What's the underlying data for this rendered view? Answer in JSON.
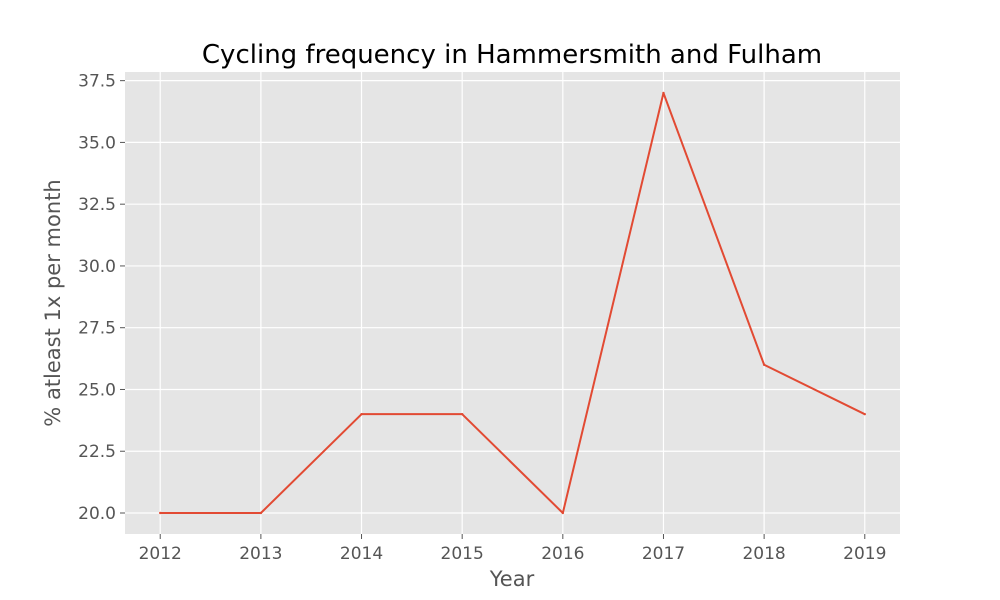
{
  "chart_data": {
    "type": "line",
    "title": "Cycling frequency in Hammersmith and Fulham",
    "xlabel": "Year",
    "ylabel": "% atleast 1x per month",
    "x": [
      2012,
      2013,
      2014,
      2015,
      2016,
      2017,
      2018,
      2019
    ],
    "series": [
      {
        "values": [
          20,
          20,
          24,
          24,
          20,
          37,
          26,
          24
        ],
        "color": "#e24a33"
      }
    ],
    "xticks": [
      "2012",
      "2013",
      "2014",
      "2015",
      "2016",
      "2017",
      "2018",
      "2019"
    ],
    "yticks": [
      "20.0",
      "22.5",
      "25.0",
      "27.5",
      "30.0",
      "32.5",
      "35.0",
      "37.5"
    ],
    "ytick_values": [
      20,
      22.5,
      25,
      27.5,
      30,
      32.5,
      35,
      37.5
    ],
    "xlim": [
      2011.65,
      2019.35
    ],
    "ylim": [
      19.15,
      37.85
    ],
    "grid": true,
    "style": {
      "plot_background": "#e5e5e5",
      "grid_color": "#ffffff",
      "tick_color": "#555555"
    }
  }
}
